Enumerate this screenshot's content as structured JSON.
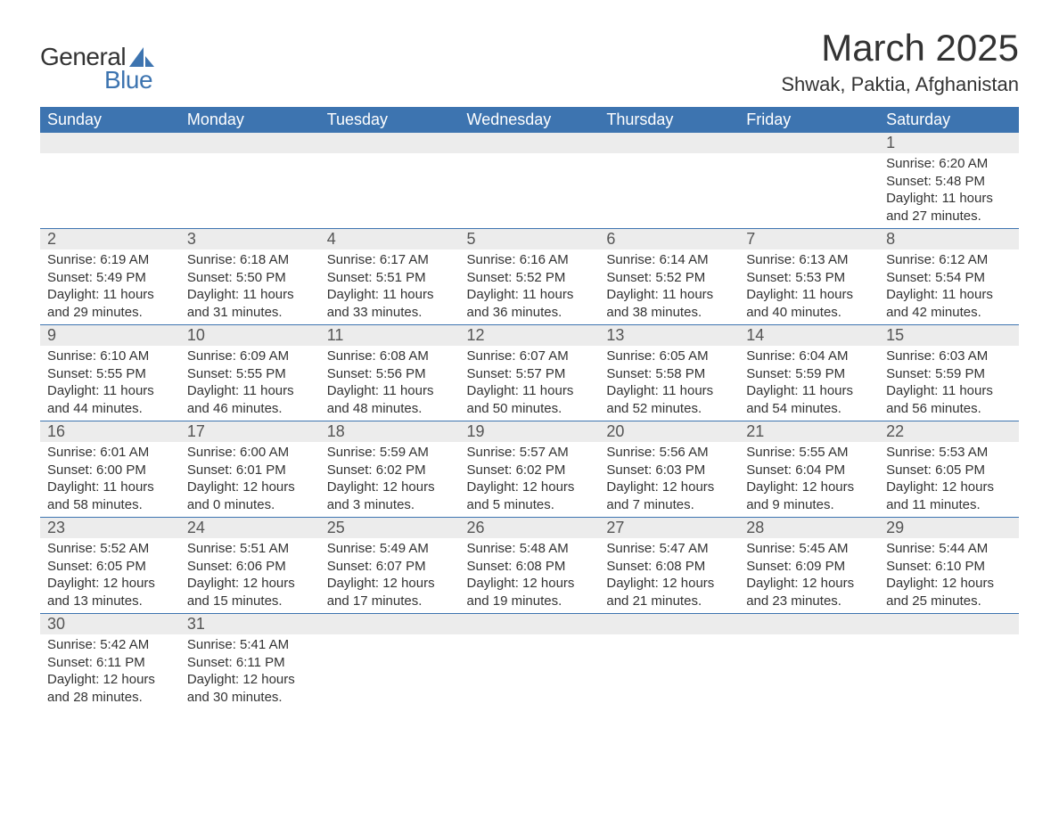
{
  "logo": {
    "text1": "General",
    "text2": "Blue"
  },
  "title": "March 2025",
  "location": "Shwak, Paktia, Afghanistan",
  "day_headers": [
    "Sunday",
    "Monday",
    "Tuesday",
    "Wednesday",
    "Thursday",
    "Friday",
    "Saturday"
  ],
  "colors": {
    "header_bg": "#3d74b0",
    "header_text": "#ffffff",
    "daynum_bg": "#ececec",
    "row_border": "#3d74b0",
    "text": "#333333",
    "logo_blue": "#3d74b0"
  },
  "typography": {
    "title_fontsize": 42,
    "location_fontsize": 22,
    "dayheader_fontsize": 18,
    "daynum_fontsize": 18,
    "cell_fontsize": 15
  },
  "layout": {
    "columns": 7,
    "first_day_column": 6,
    "days_in_month": 31
  },
  "days": [
    {
      "n": 1,
      "sunrise": "6:20 AM",
      "sunset": "5:48 PM",
      "daylight": "11 hours and 27 minutes."
    },
    {
      "n": 2,
      "sunrise": "6:19 AM",
      "sunset": "5:49 PM",
      "daylight": "11 hours and 29 minutes."
    },
    {
      "n": 3,
      "sunrise": "6:18 AM",
      "sunset": "5:50 PM",
      "daylight": "11 hours and 31 minutes."
    },
    {
      "n": 4,
      "sunrise": "6:17 AM",
      "sunset": "5:51 PM",
      "daylight": "11 hours and 33 minutes."
    },
    {
      "n": 5,
      "sunrise": "6:16 AM",
      "sunset": "5:52 PM",
      "daylight": "11 hours and 36 minutes."
    },
    {
      "n": 6,
      "sunrise": "6:14 AM",
      "sunset": "5:52 PM",
      "daylight": "11 hours and 38 minutes."
    },
    {
      "n": 7,
      "sunrise": "6:13 AM",
      "sunset": "5:53 PM",
      "daylight": "11 hours and 40 minutes."
    },
    {
      "n": 8,
      "sunrise": "6:12 AM",
      "sunset": "5:54 PM",
      "daylight": "11 hours and 42 minutes."
    },
    {
      "n": 9,
      "sunrise": "6:10 AM",
      "sunset": "5:55 PM",
      "daylight": "11 hours and 44 minutes."
    },
    {
      "n": 10,
      "sunrise": "6:09 AM",
      "sunset": "5:55 PM",
      "daylight": "11 hours and 46 minutes."
    },
    {
      "n": 11,
      "sunrise": "6:08 AM",
      "sunset": "5:56 PM",
      "daylight": "11 hours and 48 minutes."
    },
    {
      "n": 12,
      "sunrise": "6:07 AM",
      "sunset": "5:57 PM",
      "daylight": "11 hours and 50 minutes."
    },
    {
      "n": 13,
      "sunrise": "6:05 AM",
      "sunset": "5:58 PM",
      "daylight": "11 hours and 52 minutes."
    },
    {
      "n": 14,
      "sunrise": "6:04 AM",
      "sunset": "5:59 PM",
      "daylight": "11 hours and 54 minutes."
    },
    {
      "n": 15,
      "sunrise": "6:03 AM",
      "sunset": "5:59 PM",
      "daylight": "11 hours and 56 minutes."
    },
    {
      "n": 16,
      "sunrise": "6:01 AM",
      "sunset": "6:00 PM",
      "daylight": "11 hours and 58 minutes."
    },
    {
      "n": 17,
      "sunrise": "6:00 AM",
      "sunset": "6:01 PM",
      "daylight": "12 hours and 0 minutes."
    },
    {
      "n": 18,
      "sunrise": "5:59 AM",
      "sunset": "6:02 PM",
      "daylight": "12 hours and 3 minutes."
    },
    {
      "n": 19,
      "sunrise": "5:57 AM",
      "sunset": "6:02 PM",
      "daylight": "12 hours and 5 minutes."
    },
    {
      "n": 20,
      "sunrise": "5:56 AM",
      "sunset": "6:03 PM",
      "daylight": "12 hours and 7 minutes."
    },
    {
      "n": 21,
      "sunrise": "5:55 AM",
      "sunset": "6:04 PM",
      "daylight": "12 hours and 9 minutes."
    },
    {
      "n": 22,
      "sunrise": "5:53 AM",
      "sunset": "6:05 PM",
      "daylight": "12 hours and 11 minutes."
    },
    {
      "n": 23,
      "sunrise": "5:52 AM",
      "sunset": "6:05 PM",
      "daylight": "12 hours and 13 minutes."
    },
    {
      "n": 24,
      "sunrise": "5:51 AM",
      "sunset": "6:06 PM",
      "daylight": "12 hours and 15 minutes."
    },
    {
      "n": 25,
      "sunrise": "5:49 AM",
      "sunset": "6:07 PM",
      "daylight": "12 hours and 17 minutes."
    },
    {
      "n": 26,
      "sunrise": "5:48 AM",
      "sunset": "6:08 PM",
      "daylight": "12 hours and 19 minutes."
    },
    {
      "n": 27,
      "sunrise": "5:47 AM",
      "sunset": "6:08 PM",
      "daylight": "12 hours and 21 minutes."
    },
    {
      "n": 28,
      "sunrise": "5:45 AM",
      "sunset": "6:09 PM",
      "daylight": "12 hours and 23 minutes."
    },
    {
      "n": 29,
      "sunrise": "5:44 AM",
      "sunset": "6:10 PM",
      "daylight": "12 hours and 25 minutes."
    },
    {
      "n": 30,
      "sunrise": "5:42 AM",
      "sunset": "6:11 PM",
      "daylight": "12 hours and 28 minutes."
    },
    {
      "n": 31,
      "sunrise": "5:41 AM",
      "sunset": "6:11 PM",
      "daylight": "12 hours and 30 minutes."
    }
  ],
  "labels": {
    "sunrise": "Sunrise:",
    "sunset": "Sunset:",
    "daylight": "Daylight:"
  }
}
